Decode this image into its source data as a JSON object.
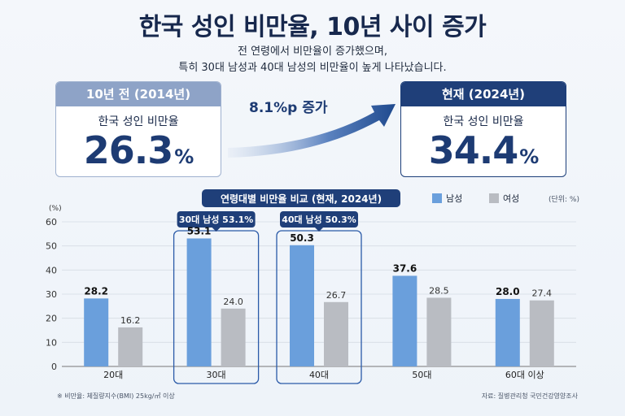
{
  "header": {
    "title": "한국 성인 비만율, 10년 사이 증가",
    "subtitle_line1": "전 연령에서 비만율이 증가했으며,",
    "subtitle_line2": "특히 30대 남성과 40대 남성의 비만율이 높게 나타났습니다."
  },
  "summary": {
    "past": {
      "header": "10년 전 (2014년)",
      "label": "한국 성인 비만율",
      "value": "26.3",
      "unit": "%"
    },
    "now": {
      "header": "현재 (2024년)",
      "label": "한국 성인 비만율",
      "value": "34.4",
      "unit": "%"
    },
    "increase": "8.1%p 증가"
  },
  "chart_data": {
    "type": "bar",
    "title": "연령대별 비만율 비교 (현재, 2024년)",
    "ylabel": "(%)",
    "unit_note": "(단위: %)",
    "ylim": [
      0,
      60
    ],
    "yticks": [
      0,
      10,
      20,
      30,
      40,
      50,
      60
    ],
    "categories": [
      "20대",
      "30대",
      "40대",
      "50대",
      "60대 이상"
    ],
    "series": [
      {
        "name": "남성",
        "values": [
          28.2,
          53.1,
          50.3,
          37.6,
          28.0
        ],
        "labels": [
          "28.2",
          "53.1",
          "50.3",
          "37.6",
          "28.0"
        ]
      },
      {
        "name": "여성",
        "values": [
          16.2,
          24.0,
          26.7,
          28.5,
          27.4
        ],
        "labels": [
          "16.2",
          "24.0",
          "26.7",
          "28.5",
          "27.4"
        ]
      }
    ],
    "highlights": [
      {
        "category_index": 1,
        "text": "30대 남성 53.1%"
      },
      {
        "category_index": 2,
        "text": "40대 남성 50.3%"
      }
    ],
    "grid": true,
    "legend": "top-right"
  },
  "colors": {
    "male": "#6a9fdc",
    "female": "#b9bcc2",
    "navy": "#1f3f79",
    "highlight_border": "#2a5aa8"
  },
  "footer": {
    "note": "※ 비만율: 체질량지수(BMI) 25kg/㎡ 이상",
    "source": "자료: 질병관리청 국민건강영양조사"
  }
}
